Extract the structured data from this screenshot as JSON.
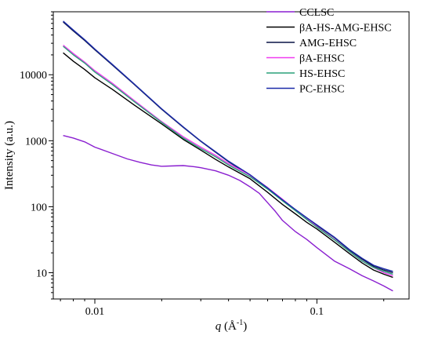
{
  "chart_data": {
    "type": "line",
    "title": "",
    "xlabel": {
      "italic": "q",
      "rest": " (Å",
      "sup": "-1",
      "close": ")"
    },
    "ylabel": "Intensity (a.u.)",
    "x_scale": "log",
    "y_scale": "log",
    "xlim": [
      0.0065,
      0.26
    ],
    "ylim": [
      4,
      90000
    ],
    "x_ticks": [
      {
        "value": 0.01,
        "label": "0.01"
      },
      {
        "value": 0.1,
        "label": "0.1"
      }
    ],
    "y_ticks": [
      {
        "value": 10,
        "label": "10"
      },
      {
        "value": 100,
        "label": "100"
      },
      {
        "value": 1000,
        "label": "1000"
      },
      {
        "value": 10000,
        "label": "10000"
      }
    ],
    "grid": false,
    "legend_position": "top-right",
    "series": [
      {
        "name": "CCLSC",
        "color": "#8a1fd0",
        "x": [
          0.0072,
          0.008,
          0.009,
          0.01,
          0.012,
          0.014,
          0.016,
          0.018,
          0.02,
          0.022,
          0.025,
          0.028,
          0.03,
          0.035,
          0.04,
          0.045,
          0.05,
          0.055,
          0.06,
          0.065,
          0.07,
          0.08,
          0.09,
          0.1,
          0.12,
          0.14,
          0.16,
          0.18,
          0.2,
          0.22
        ],
        "y": [
          1200,
          1100,
          960,
          800,
          640,
          530,
          470,
          430,
          410,
          415,
          420,
          405,
          390,
          350,
          300,
          250,
          200,
          160,
          115,
          85,
          62,
          42,
          32,
          24,
          15,
          11.5,
          9,
          7.5,
          6.3,
          5.3
        ]
      },
      {
        "name": "βA-HS-AMG-EHSC",
        "color": "#000000",
        "x": [
          0.0072,
          0.008,
          0.009,
          0.01,
          0.012,
          0.015,
          0.02,
          0.025,
          0.03,
          0.035,
          0.04,
          0.05,
          0.06,
          0.07,
          0.08,
          0.09,
          0.1,
          0.12,
          0.14,
          0.16,
          0.18,
          0.2,
          0.22
        ],
        "y": [
          21500,
          16000,
          12000,
          9000,
          6000,
          3500,
          1800,
          1050,
          720,
          520,
          400,
          265,
          165,
          108,
          78,
          58,
          46,
          29,
          19.5,
          14,
          11,
          9.5,
          8.5
        ]
      },
      {
        "name": "AMG-EHSC",
        "color": "#0a1446",
        "x": [
          0.0072,
          0.008,
          0.009,
          0.01,
          0.012,
          0.015,
          0.02,
          0.025,
          0.03,
          0.035,
          0.04,
          0.05,
          0.06,
          0.07,
          0.08,
          0.09,
          0.1,
          0.12,
          0.14,
          0.16,
          0.18,
          0.2,
          0.22
        ],
        "y": [
          63000,
          46000,
          33000,
          24000,
          14000,
          7200,
          3000,
          1600,
          980,
          670,
          480,
          300,
          190,
          125,
          90,
          67,
          52,
          34,
          22,
          16,
          12.5,
          11,
          10
        ]
      },
      {
        "name": "βA-EHSC",
        "color": "#f03cf0",
        "x": [
          0.0072,
          0.008,
          0.009,
          0.01,
          0.012,
          0.015,
          0.02,
          0.025,
          0.03,
          0.035,
          0.04,
          0.05,
          0.06,
          0.07,
          0.08,
          0.09,
          0.1,
          0.12,
          0.14,
          0.16,
          0.18,
          0.2,
          0.22
        ],
        "y": [
          28000,
          21000,
          15500,
          11500,
          7400,
          4100,
          1950,
          1150,
          800,
          600,
          450,
          300,
          195,
          130,
          90,
          66,
          50,
          32,
          21,
          15,
          12,
          10,
          9
        ]
      },
      {
        "name": "HS-EHSC",
        "color": "#2aa07a",
        "x": [
          0.0072,
          0.008,
          0.009,
          0.01,
          0.012,
          0.015,
          0.02,
          0.025,
          0.03,
          0.035,
          0.04,
          0.05,
          0.06,
          0.07,
          0.08,
          0.09,
          0.1,
          0.12,
          0.14,
          0.16,
          0.18,
          0.2,
          0.22
        ],
        "y": [
          27000,
          20000,
          15000,
          11000,
          7100,
          3950,
          1900,
          1100,
          760,
          570,
          430,
          285,
          185,
          123,
          87,
          64,
          49,
          31.5,
          21,
          15,
          12,
          10.5,
          9.5
        ]
      },
      {
        "name": "PC-EHSC",
        "color": "#1a2aa8",
        "x": [
          0.0072,
          0.008,
          0.009,
          0.01,
          0.012,
          0.015,
          0.02,
          0.025,
          0.03,
          0.035,
          0.04,
          0.05,
          0.06,
          0.07,
          0.08,
          0.09,
          0.1,
          0.12,
          0.14,
          0.16,
          0.18,
          0.2,
          0.22
        ],
        "y": [
          65000,
          47500,
          34000,
          24500,
          14300,
          7300,
          3050,
          1620,
          990,
          680,
          490,
          305,
          192,
          127,
          91,
          68,
          53,
          34.5,
          22.5,
          16.5,
          13,
          11.5,
          10.5
        ]
      }
    ]
  }
}
